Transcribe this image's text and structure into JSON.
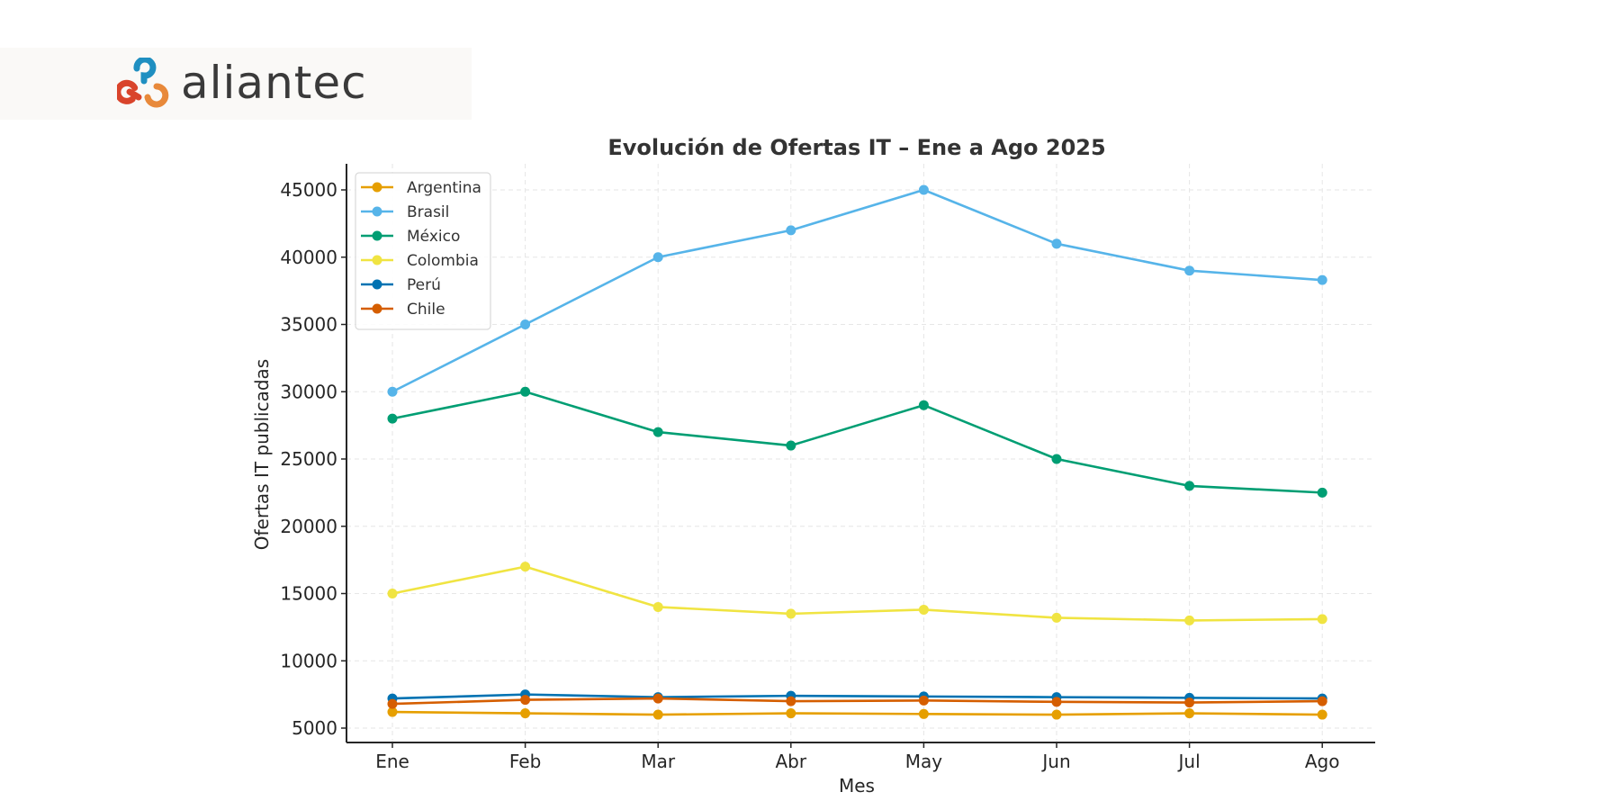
{
  "brand": {
    "name": "aliantec",
    "colors": {
      "blue": "#1f8fc1",
      "red": "#d9442b",
      "orange": "#e8893a",
      "text": "#3a3a3a"
    }
  },
  "chart_data": {
    "type": "line",
    "title": "Evolución de Ofertas IT – Ene a Ago 2025",
    "xlabel": "Mes",
    "ylabel": "Ofertas IT publicadas",
    "categories": [
      "Ene",
      "Feb",
      "Mar",
      "Abr",
      "May",
      "Jun",
      "Jul",
      "Ago"
    ],
    "yticks": [
      5000,
      10000,
      15000,
      20000,
      25000,
      30000,
      35000,
      40000,
      45000
    ],
    "ylim": [
      4150,
      47000
    ],
    "grid": true,
    "legend_position": "top-left",
    "series": [
      {
        "name": "Argentina",
        "color": "#e69f00",
        "values": [
          6200,
          6100,
          6000,
          6100,
          6050,
          6000,
          6100,
          6000
        ]
      },
      {
        "name": "Brasil",
        "color": "#56b4e9",
        "values": [
          30000,
          35000,
          40000,
          42000,
          45000,
          41000,
          39000,
          38300
        ]
      },
      {
        "name": "México",
        "color": "#009e73",
        "values": [
          28000,
          30000,
          27000,
          26000,
          29000,
          25000,
          23000,
          22500
        ]
      },
      {
        "name": "Colombia",
        "color": "#f0e442",
        "values": [
          15000,
          17000,
          14000,
          13500,
          13800,
          13200,
          13000,
          13100
        ]
      },
      {
        "name": "Perú",
        "color": "#0072b2",
        "values": [
          7200,
          7500,
          7300,
          7400,
          7350,
          7300,
          7250,
          7200
        ]
      },
      {
        "name": "Chile",
        "color": "#d55e00",
        "values": [
          6800,
          7100,
          7200,
          7000,
          7050,
          6950,
          6900,
          7000
        ]
      }
    ]
  }
}
